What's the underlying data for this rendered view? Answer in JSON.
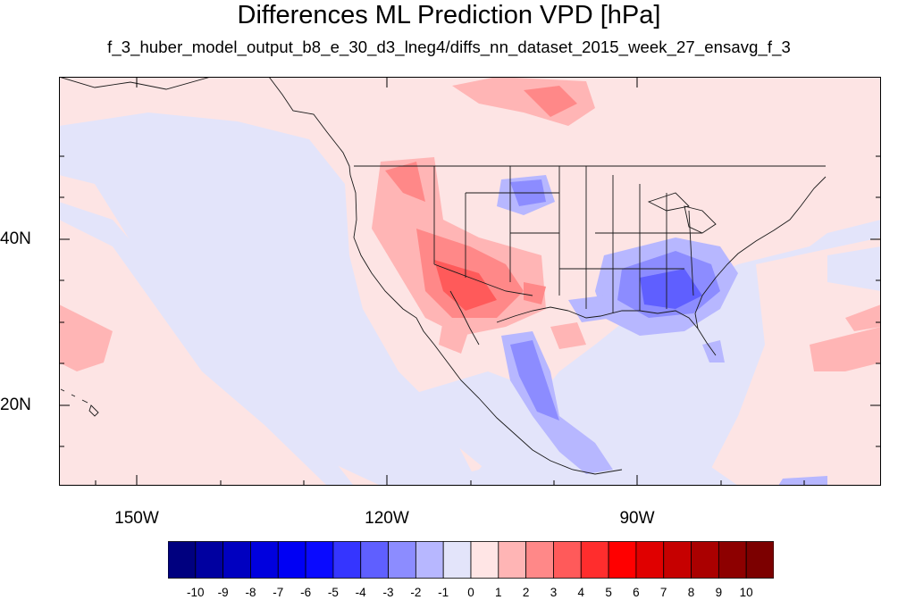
{
  "title": "Differences ML Prediction VPD [hPa]",
  "subtitle": "f_3_huber_model_output_b8_e_30_d3_lneg4/diffs_nn_dataset_2015_week_27_ensavg_f_3",
  "map": {
    "lon_ticks": [
      "150W",
      "120W",
      "90W"
    ],
    "lat_ticks": [
      "40N",
      "20N"
    ],
    "background_color": "#e3e4fa",
    "land_features": [
      "coastlines",
      "us-state-borders",
      "country-borders",
      "lakes"
    ]
  },
  "colorbar": {
    "labels": [
      "-10",
      "-9",
      "-8",
      "-7",
      "-6",
      "-5",
      "-4",
      "-3",
      "-2",
      "-1",
      "0",
      "1",
      "2",
      "3",
      "4",
      "5",
      "6",
      "7",
      "8",
      "9",
      "10"
    ],
    "colors": [
      "#00007f",
      "#0000a0",
      "#0000c0",
      "#0000de",
      "#0000f4",
      "#0a0aff",
      "#3535ff",
      "#5f5fff",
      "#8c8cff",
      "#b7b7ff",
      "#e3e4fa",
      "#ffe5e5",
      "#ffb5b5",
      "#ff8888",
      "#ff5a5a",
      "#ff2d2d",
      "#ff0000",
      "#e00000",
      "#c60000",
      "#aa0000",
      "#8d0000",
      "#7c0000"
    ]
  }
}
